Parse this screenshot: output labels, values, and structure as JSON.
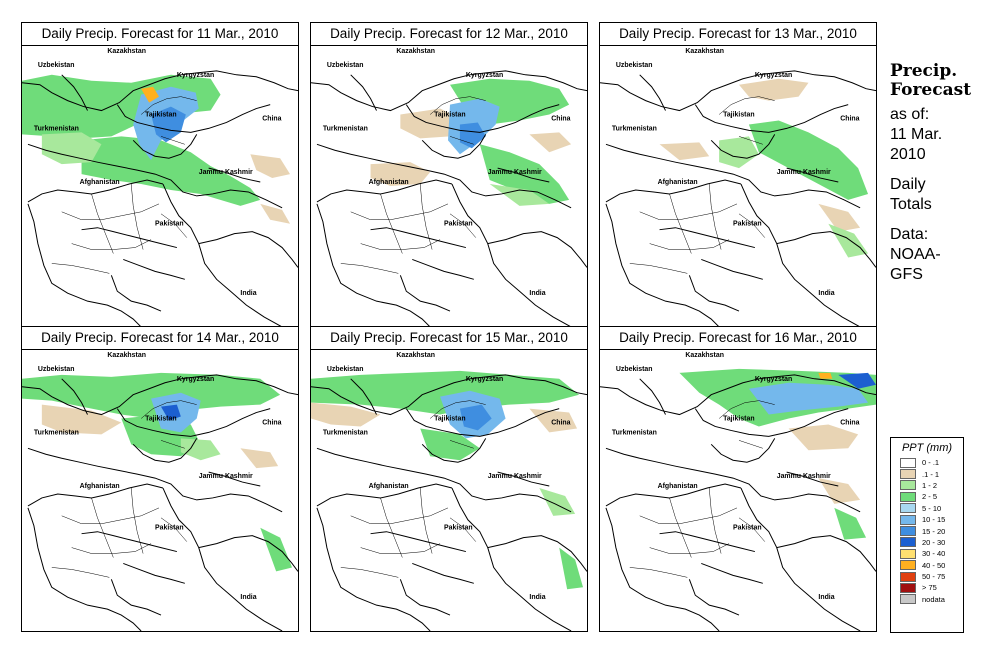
{
  "panels": [
    {
      "title": "Daily Precip. Forecast for  11 Mar., 2010"
    },
    {
      "title": "Daily Precip. Forecast for  12 Mar., 2010"
    },
    {
      "title": "Daily Precip. Forecast for  13 Mar., 2010"
    },
    {
      "title": "Daily Precip. Forecast for  14 Mar., 2010"
    },
    {
      "title": "Daily Precip. Forecast for  15 Mar., 2010"
    },
    {
      "title": "Daily Precip. Forecast for  16 Mar., 2010"
    }
  ],
  "map_labels": {
    "kazakhstan": "Kazakhstan",
    "uzbekistan": "Uzbekistan",
    "kyrgyzstan": "Kyrgyzstan",
    "tajikistan": "Tajikistan",
    "turkmenistan": "Turkmenistan",
    "china": "China",
    "afghanistan": "Afghanistan",
    "jammu_kashmir": "Jammu Kashmir",
    "pakistan": "Pakistan",
    "india": "India"
  },
  "side": {
    "title_line1": "Precip.",
    "title_line2": "Forecast",
    "asof_line1": "as of:",
    "asof_line2": "11 Mar.",
    "asof_line3": "2010",
    "totals_line1": "Daily",
    "totals_line2": "Totals",
    "data_line1": "Data:",
    "data_line2": "NOAA-",
    "data_line3": "GFS"
  },
  "legend": {
    "title": "PPT (mm)",
    "items": [
      {
        "label": "0 - .1",
        "color": "#ffffff"
      },
      {
        "label": ".1 - 1",
        "color": "#e8d4b4"
      },
      {
        "label": "1 - 2",
        "color": "#a8e89c"
      },
      {
        "label": "2 - 5",
        "color": "#6fdc7a"
      },
      {
        "label": "5 - 10",
        "color": "#a8d8f0"
      },
      {
        "label": "10 - 15",
        "color": "#74b8ec"
      },
      {
        "label": "15 - 20",
        "color": "#3f8ee0"
      },
      {
        "label": "20 - 30",
        "color": "#1c5fd0"
      },
      {
        "label": "30 - 40",
        "color": "#ffe070"
      },
      {
        "label": "40 - 50",
        "color": "#ffb020"
      },
      {
        "label": "50 - 75",
        "color": "#e04010"
      },
      {
        "label": "> 75",
        "color": "#a01010"
      },
      {
        "label": "nodata",
        "color": "#c8c8c8"
      }
    ]
  }
}
